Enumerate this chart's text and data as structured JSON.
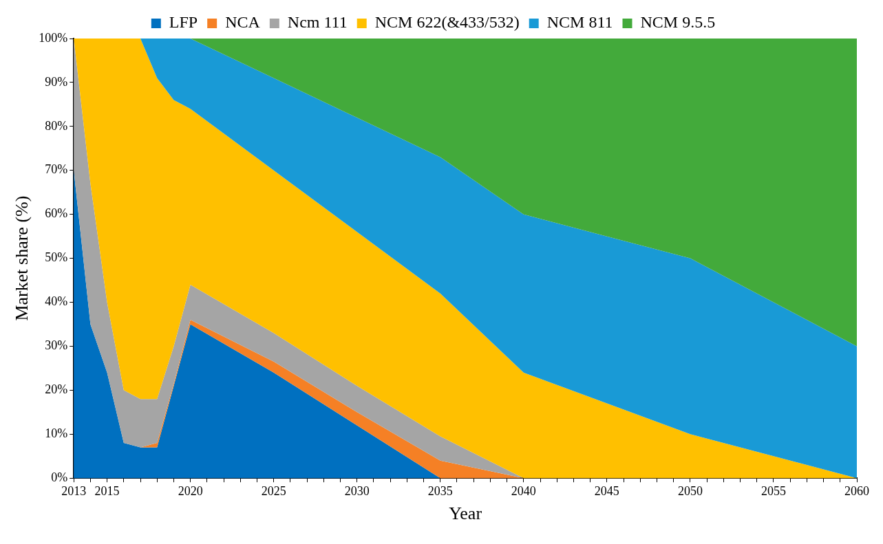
{
  "chart_data": {
    "type": "area",
    "stacked": true,
    "xlabel": "Year",
    "ylabel": "Market share (%)",
    "legend": "top",
    "grid": false,
    "marker": "none",
    "x": [
      2013,
      2014,
      2015,
      2016,
      2017,
      2018,
      2019,
      2020,
      2025,
      2030,
      2035,
      2040,
      2045,
      2050,
      2055,
      2060
    ],
    "xlim": [
      2013,
      2060
    ],
    "xticks": [
      2013,
      {
        "value": 2014,
        "label": null
      },
      2015,
      {
        "value": 2016,
        "label": null
      },
      {
        "value": 2017,
        "label": null
      },
      {
        "value": 2018,
        "label": null
      },
      {
        "value": 2019,
        "label": null
      },
      2020,
      {
        "value": 2021,
        "label": null
      },
      {
        "value": 2022,
        "label": null
      },
      {
        "value": 2023,
        "label": null
      },
      {
        "value": 2024,
        "label": null
      },
      2025,
      {
        "value": 2026,
        "label": null
      },
      {
        "value": 2027,
        "label": null
      },
      {
        "value": 2028,
        "label": null
      },
      {
        "value": 2029,
        "label": null
      },
      2030,
      {
        "value": 2031,
        "label": null
      },
      {
        "value": 2032,
        "label": null
      },
      {
        "value": 2033,
        "label": null
      },
      {
        "value": 2034,
        "label": null
      },
      2035,
      {
        "value": 2036,
        "label": null
      },
      {
        "value": 2037,
        "label": null
      },
      {
        "value": 2038,
        "label": null
      },
      {
        "value": 2039,
        "label": null
      },
      2040,
      {
        "value": 2041,
        "label": null
      },
      {
        "value": 2042,
        "label": null
      },
      {
        "value": 2043,
        "label": null
      },
      {
        "value": 2044,
        "label": null
      },
      2045,
      {
        "value": 2046,
        "label": null
      },
      {
        "value": 2047,
        "label": null
      },
      {
        "value": 2048,
        "label": null
      },
      {
        "value": 2049,
        "label": null
      },
      2050,
      {
        "value": 2051,
        "label": null
      },
      {
        "value": 2052,
        "label": null
      },
      {
        "value": 2053,
        "label": null
      },
      {
        "value": 2054,
        "label": null
      },
      2055,
      {
        "value": 2056,
        "label": null
      },
      {
        "value": 2057,
        "label": null
      },
      {
        "value": 2058,
        "label": null
      },
      {
        "value": 2059,
        "label": null
      },
      2060
    ],
    "ylim": [
      0,
      100
    ],
    "yticks": [
      {
        "value": 0,
        "label": "0%"
      },
      {
        "value": 10,
        "label": "10%"
      },
      {
        "value": 20,
        "label": "20%"
      },
      {
        "value": 30,
        "label": "30%"
      },
      {
        "value": 40,
        "label": "40%"
      },
      {
        "value": 50,
        "label": "50%"
      },
      {
        "value": 60,
        "label": "60%"
      },
      {
        "value": 70,
        "label": "70%"
      },
      {
        "value": 80,
        "label": "80%"
      },
      {
        "value": 90,
        "label": "90%"
      },
      {
        "value": 100,
        "label": "100%"
      }
    ],
    "series": [
      {
        "name": "LFP",
        "color": "#0070c0",
        "values": [
          70,
          35,
          24,
          8,
          7,
          7,
          21,
          35,
          24,
          12,
          0,
          null,
          null,
          null,
          null,
          null
        ]
      },
      {
        "name": "NCA",
        "color": "#f58025",
        "values": [
          null,
          null,
          null,
          null,
          0,
          1,
          0.5,
          1,
          2.5,
          3,
          4,
          0,
          null,
          null,
          null,
          null
        ]
      },
      {
        "name": "Ncm 111",
        "color": "#a5a5a5",
        "values": [
          30,
          32,
          16,
          12,
          11,
          10,
          8.5,
          8,
          6.5,
          6,
          5.5,
          0,
          null,
          null,
          null,
          null
        ]
      },
      {
        "name": "NCM 622(&433/532)",
        "color": "#ffc000",
        "values": [
          0,
          33,
          60,
          80,
          82,
          73,
          56,
          40,
          37,
          35,
          32.5,
          24,
          17,
          10,
          5,
          0
        ]
      },
      {
        "name": "NCM 811",
        "color": "#199ad6",
        "values": [
          null,
          null,
          null,
          null,
          0,
          9,
          14,
          16,
          21,
          26,
          31,
          36,
          38,
          40,
          35,
          30
        ]
      },
      {
        "name": "NCM 9.5.5",
        "color": "#43aa3b",
        "values": [
          null,
          null,
          null,
          null,
          null,
          null,
          null,
          0,
          9,
          18,
          27,
          40,
          45,
          50,
          60,
          70
        ]
      }
    ]
  }
}
